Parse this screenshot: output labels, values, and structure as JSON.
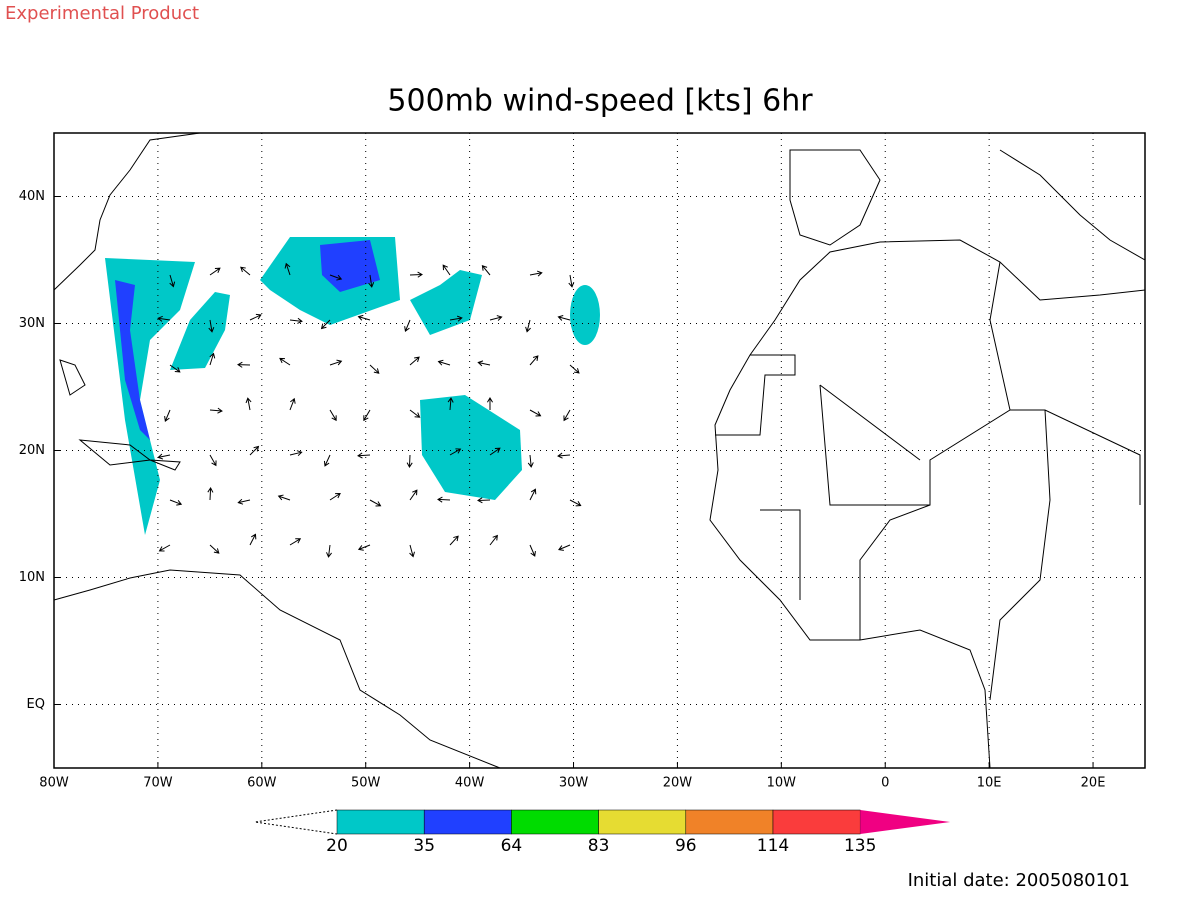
{
  "header": {
    "label": "Experimental Product"
  },
  "map": {
    "type": "map",
    "title": "500mb wind-speed [kts] 6hr",
    "xlim": [
      -80,
      25
    ],
    "ylim": [
      -5,
      45
    ],
    "xticks": [
      {
        "value": -80,
        "label": "80W"
      },
      {
        "value": -70,
        "label": "70W"
      },
      {
        "value": -60,
        "label": "60W"
      },
      {
        "value": -50,
        "label": "50W"
      },
      {
        "value": -40,
        "label": "40W"
      },
      {
        "value": -30,
        "label": "30W"
      },
      {
        "value": -20,
        "label": "20W"
      },
      {
        "value": -10,
        "label": "10W"
      },
      0,
      {
        "value": 10,
        "label": "10E"
      },
      {
        "value": 20,
        "label": "20E"
      }
    ],
    "yticks": [
      {
        "value": 0,
        "label": "EQ"
      },
      {
        "value": 10,
        "label": "10N"
      },
      {
        "value": 20,
        "label": "20N"
      },
      {
        "value": 30,
        "label": "30N"
      },
      {
        "value": 40,
        "label": "40N"
      }
    ],
    "grid": true,
    "colorbar": {
      "levels": [
        20,
        35,
        64,
        83,
        96,
        114,
        135
      ],
      "colors": [
        "#00c8c8",
        "#2040ff",
        "#00dc00",
        "#e6dc32",
        "#f08228",
        "#fa3c3c",
        "#f00082"
      ]
    }
  },
  "footer": {
    "initial_date": "Initial date: 2005080101"
  }
}
